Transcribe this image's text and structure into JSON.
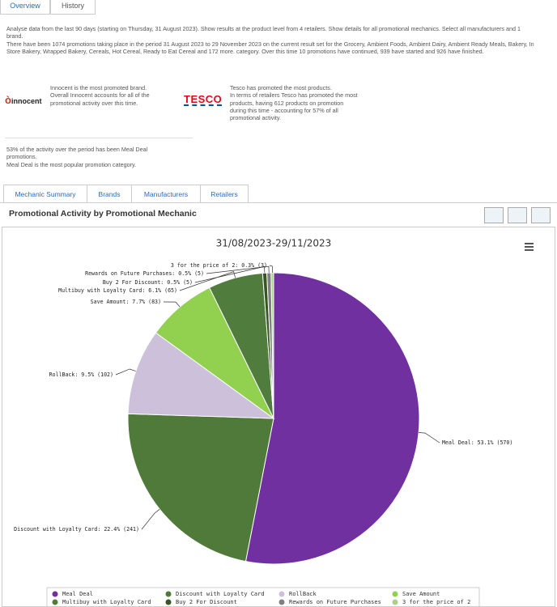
{
  "tabs": [
    "Overview",
    "History"
  ],
  "summary": [
    "Analyse data from the last 90 days (starting on Thursday, 31 August 2023). Show results at the product level from 4 retailers. Show details for all promotional mechanics. Select all manufacturers and 1 brand.",
    "There have been 1074 promotions taking place in the period 31 August 2023 to 29 November 2023 on the current result set for the Grocery, Ambient Foods, Ambient Dairy, Ambient Ready Meals, Bakery, In Store Bakery, Wrapped Bakery, Cereals, Hot Cereal, Ready to Eat Cereal and 172 more. category. Over this time 10 promotions have continued, 939 have started and 926 have finished."
  ],
  "insights": [
    {
      "logo": "innocent",
      "lines": [
        "Innocent is the most promoted brand.",
        "Overall Innocent accounts for all of the promotional activity over this time."
      ]
    },
    {
      "logo": "TESCO",
      "lines": [
        "Tesco has promoted the most products.",
        "In terms of retailers Tesco has promoted the most products, having 612 products on promotion during this time - accounting for 57% of all promotional activity."
      ]
    },
    {
      "lines": [
        "53% of the activity over the period has been Meal Deal promotions.",
        "Meal Deal is the most popular promotion category."
      ]
    }
  ],
  "subtabs": [
    "Mechanic Summary",
    "Brands",
    "Manufacturers",
    "Retailers"
  ],
  "panel_title": "Promotional Activity by Promotional Mechanic",
  "chart_data": {
    "type": "pie",
    "title": "31/08/2023-29/11/2023",
    "categories": [
      "Meal Deal",
      "Discount with Loyalty Card",
      "RollBack",
      "Save Amount",
      "Multibuy with Loyalty Card",
      "Buy 2 For Discount",
      "Rewards on Future Purchases",
      "3 for the price of 2"
    ],
    "values": [
      570,
      241,
      102,
      83,
      65,
      5,
      5,
      3
    ],
    "value_labels": [
      "Meal Deal: 53.1% (570)",
      "Discount with Loyalty Card: 22.4% (241)",
      "RollBack: 9.5% (102)",
      "Save Amount: 7.7% (83)",
      "Multibuy with Loyalty Card: 6.1% (65)",
      "Buy 2 For Discount: 0.5% (5)",
      "Rewards on Future Purchases: 0.5% (5)",
      "3 for the price of 2: 0.3% (3)"
    ],
    "colors": [
      "#7030a0",
      "#4f7a3a",
      "#ccc0da",
      "#92d050",
      "#507d3d",
      "#375623",
      "#808080",
      "#a9d08e"
    ]
  }
}
